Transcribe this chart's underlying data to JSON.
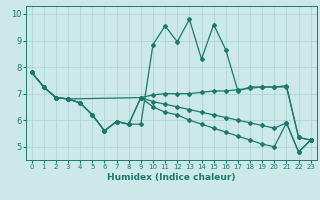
{
  "xlabel": "Humidex (Indice chaleur)",
  "bg_color": "#cce8e8",
  "line_color": "#1a7a6e",
  "grid_color": "#aad0d0",
  "xlim": [
    -0.5,
    23.5
  ],
  "ylim": [
    4.5,
    10.3
  ],
  "xticks": [
    0,
    1,
    2,
    3,
    4,
    5,
    6,
    7,
    8,
    9,
    10,
    11,
    12,
    13,
    14,
    15,
    16,
    17,
    18,
    19,
    20,
    21,
    22,
    23
  ],
  "yticks": [
    5,
    6,
    7,
    8,
    9,
    10
  ],
  "line1_x": [
    0,
    1,
    2,
    3,
    4,
    5,
    6,
    7,
    8,
    9,
    10,
    11,
    12,
    13,
    14,
    15,
    16,
    17,
    18,
    19,
    20,
    21,
    22,
    23
  ],
  "line1_y": [
    7.8,
    7.25,
    6.85,
    6.8,
    6.65,
    6.2,
    5.6,
    5.95,
    5.85,
    5.85,
    8.85,
    9.55,
    8.95,
    9.8,
    8.3,
    9.6,
    8.65,
    7.1,
    7.25,
    7.25,
    7.25,
    7.3,
    5.35,
    5.25
  ],
  "line2_x": [
    0,
    1,
    2,
    3,
    9,
    10,
    11,
    12,
    13,
    14,
    15,
    16,
    17,
    18,
    19,
    20,
    21,
    22,
    23
  ],
  "line2_y": [
    7.8,
    7.25,
    6.85,
    6.8,
    6.85,
    6.95,
    7.0,
    7.0,
    7.0,
    7.05,
    7.1,
    7.1,
    7.15,
    7.2,
    7.25,
    7.25,
    7.25,
    5.35,
    5.25
  ],
  "line3_x": [
    0,
    1,
    2,
    3,
    4,
    5,
    6,
    7,
    8,
    9,
    10,
    11,
    12,
    13,
    14,
    15,
    16,
    17,
    18,
    19,
    20,
    21,
    22,
    23
  ],
  "line3_y": [
    7.8,
    7.25,
    6.85,
    6.8,
    6.65,
    6.2,
    5.6,
    5.95,
    5.85,
    6.85,
    6.7,
    6.6,
    6.5,
    6.4,
    6.3,
    6.2,
    6.1,
    6.0,
    5.9,
    5.8,
    5.7,
    5.9,
    4.8,
    5.25
  ],
  "line4_x": [
    0,
    1,
    2,
    3,
    4,
    5,
    6,
    7,
    8,
    9,
    10,
    11,
    12,
    13,
    14,
    15,
    16,
    17,
    18,
    19,
    20,
    21,
    22,
    23
  ],
  "line4_y": [
    7.8,
    7.25,
    6.85,
    6.8,
    6.65,
    6.2,
    5.6,
    5.95,
    5.85,
    6.85,
    6.5,
    6.3,
    6.2,
    6.0,
    5.85,
    5.7,
    5.55,
    5.4,
    5.25,
    5.1,
    5.0,
    5.9,
    4.8,
    5.25
  ]
}
